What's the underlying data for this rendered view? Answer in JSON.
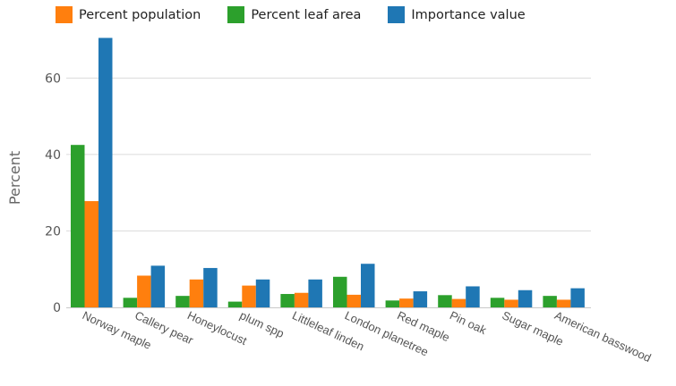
{
  "chart_data": {
    "type": "bar",
    "title": "",
    "xlabel": "",
    "ylabel": "Percent",
    "ylim": [
      0,
      72
    ],
    "yticks": [
      0,
      20,
      40,
      60
    ],
    "grid": true,
    "legend_position": "top",
    "categories": [
      "Norway maple",
      "Callery pear",
      "Honeylocust",
      "plum spp",
      "Littleleaf linden",
      "London planetree",
      "Red maple",
      "Pin oak",
      "Sugar maple",
      "American basswood"
    ],
    "series": [
      {
        "name": "Percent leaf area",
        "color": "#2ca02c",
        "values": [
          42.5,
          2.5,
          3.0,
          1.5,
          3.5,
          8.0,
          1.8,
          3.2,
          2.5,
          3.0
        ]
      },
      {
        "name": "Percent population",
        "color": "#ff7f0e",
        "values": [
          27.8,
          8.3,
          7.3,
          5.7,
          3.8,
          3.3,
          2.3,
          2.2,
          2.0,
          2.0
        ]
      },
      {
        "name": "Importance value",
        "color": "#1f77b4",
        "values": [
          70.5,
          10.9,
          10.3,
          7.3,
          7.3,
          11.4,
          4.2,
          5.5,
          4.5,
          5.0
        ]
      }
    ],
    "legend_order": [
      "Percent population",
      "Percent leaf area",
      "Importance value"
    ]
  }
}
